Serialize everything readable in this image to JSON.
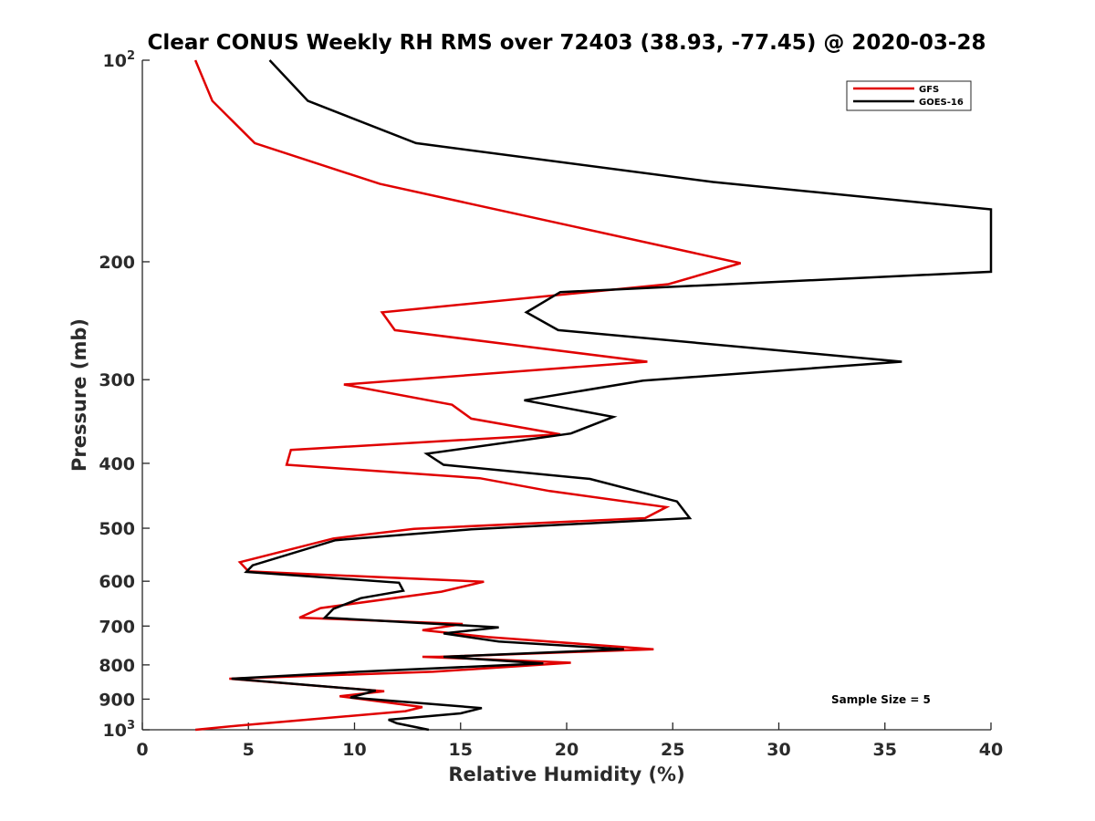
{
  "chart_data": {
    "type": "line",
    "title": "Clear CONUS Weekly RH RMS over 72403 (38.93, -77.45) @ 2020-03-28",
    "xlabel": "Relative Humidity (%)",
    "ylabel": "Pressure (mb)",
    "xlim": [
      0,
      40
    ],
    "ylim": [
      100,
      1000
    ],
    "y_scale": "log",
    "y_reversed": true,
    "grid": false,
    "legend_position": "top-right",
    "x_ticks": [
      0,
      5,
      10,
      15,
      20,
      25,
      30,
      35,
      40
    ],
    "y_ticks": [
      {
        "value": 100,
        "base": "10",
        "exp": "2"
      },
      {
        "value": 200,
        "label": "200"
      },
      {
        "value": 300,
        "label": "300"
      },
      {
        "value": 400,
        "label": "400"
      },
      {
        "value": 500,
        "label": "500"
      },
      {
        "value": 600,
        "label": "600"
      },
      {
        "value": 700,
        "label": "700"
      },
      {
        "value": 800,
        "label": "800"
      },
      {
        "value": 900,
        "label": "900"
      },
      {
        "value": 1000,
        "base": "10",
        "exp": "3"
      }
    ],
    "annotation": "Sample Size = 5",
    "series": [
      {
        "name": "GFS",
        "color": "#e00000",
        "points": [
          [
            2.5,
            100
          ],
          [
            3.3,
            115
          ],
          [
            5.3,
            133
          ],
          [
            11.2,
            153
          ],
          [
            28.2,
            201
          ],
          [
            24.8,
            216
          ],
          [
            11.3,
            238
          ],
          [
            11.9,
            253
          ],
          [
            23.8,
            282
          ],
          [
            9.5,
            305
          ],
          [
            14.6,
            327
          ],
          [
            15.5,
            343
          ],
          [
            19.7,
            362
          ],
          [
            7.0,
            382
          ],
          [
            6.8,
            402
          ],
          [
            15.9,
            421
          ],
          [
            19.2,
            440
          ],
          [
            24.7,
            465
          ],
          [
            23.7,
            483
          ],
          [
            12.8,
            501
          ],
          [
            9.0,
            518
          ],
          [
            4.6,
            562
          ],
          [
            5.0,
            580
          ],
          [
            16.1,
            601
          ],
          [
            14.1,
            622
          ],
          [
            8.4,
            658
          ],
          [
            7.4,
            680
          ],
          [
            15.1,
            695
          ],
          [
            13.2,
            710
          ],
          [
            16.3,
            727
          ],
          [
            24.1,
            758
          ],
          [
            14.0,
            778
          ],
          [
            13.2,
            778
          ],
          [
            20.2,
            794
          ],
          [
            13.7,
            819
          ],
          [
            4.1,
            839
          ],
          [
            11.4,
            876
          ],
          [
            9.3,
            891
          ],
          [
            13.2,
            925
          ],
          [
            12.4,
            938
          ],
          [
            4.5,
            986
          ],
          [
            2.5,
            1000
          ]
        ]
      },
      {
        "name": "GOES-16",
        "color": "#000000",
        "points": [
          [
            6.0,
            100
          ],
          [
            7.8,
            115
          ],
          [
            12.9,
            133
          ],
          [
            26.9,
            152
          ],
          [
            40.0,
            167
          ],
          [
            40.0,
            207
          ],
          [
            19.7,
            222
          ],
          [
            18.1,
            238
          ],
          [
            19.6,
            253
          ],
          [
            35.8,
            282
          ],
          [
            23.6,
            301
          ],
          [
            18.0,
            322
          ],
          [
            22.2,
            341
          ],
          [
            20.2,
            361
          ],
          [
            13.4,
            387
          ],
          [
            14.2,
            402
          ],
          [
            21.1,
            422
          ],
          [
            25.2,
            456
          ],
          [
            25.8,
            483
          ],
          [
            15.5,
            502
          ],
          [
            9.1,
            521
          ],
          [
            5.2,
            568
          ],
          [
            4.9,
            581
          ],
          [
            12.1,
            603
          ],
          [
            12.3,
            620
          ],
          [
            10.3,
            636
          ],
          [
            9.0,
            660
          ],
          [
            8.6,
            680
          ],
          [
            16.8,
            703
          ],
          [
            14.2,
            718
          ],
          [
            16.8,
            738
          ],
          [
            22.7,
            758
          ],
          [
            14.2,
            778
          ],
          [
            18.9,
            796
          ],
          [
            10.2,
            819
          ],
          [
            4.2,
            839
          ],
          [
            11.0,
            874
          ],
          [
            9.8,
            895
          ],
          [
            16.0,
            928
          ],
          [
            15.0,
            945
          ],
          [
            11.6,
            966
          ],
          [
            12.0,
            978
          ],
          [
            13.5,
            1000
          ]
        ]
      }
    ]
  }
}
